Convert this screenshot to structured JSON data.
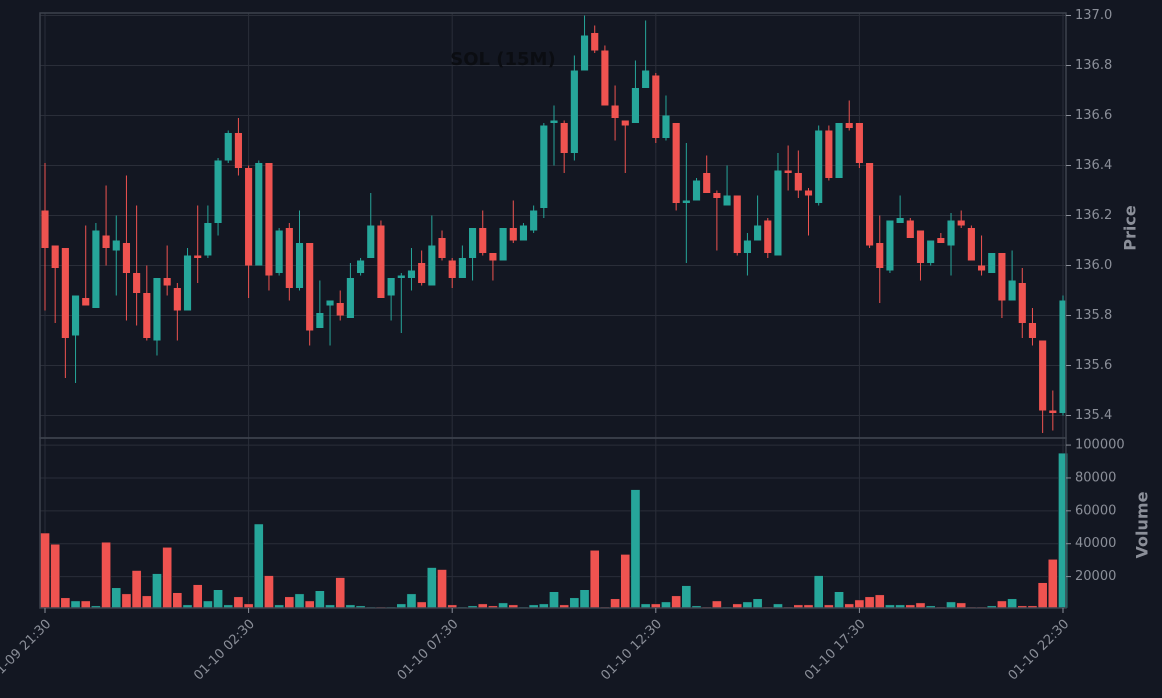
{
  "chart_data": {
    "type": "candlestick",
    "title": "SOL (15M)",
    "y_label": "Price",
    "volume_label": "Volume",
    "up_color": "#26a69a",
    "down_color": "#ef5350",
    "grid": true,
    "x": [
      "01-09 21:30",
      "01-09 21:45",
      "01-09 22:00",
      "01-09 22:15",
      "01-09 22:30",
      "01-09 22:45",
      "01-09 23:00",
      "01-09 23:15",
      "01-09 23:30",
      "01-09 23:45",
      "01-10 00:00",
      "01-10 00:15",
      "01-10 00:30",
      "01-10 00:45",
      "01-10 01:00",
      "01-10 01:15",
      "01-10 01:30",
      "01-10 01:45",
      "01-10 02:00",
      "01-10 02:15",
      "01-10 02:30",
      "01-10 02:45",
      "01-10 03:00",
      "01-10 03:15",
      "01-10 03:30",
      "01-10 03:45",
      "01-10 04:00",
      "01-10 04:15",
      "01-10 04:30",
      "01-10 04:45",
      "01-10 05:00",
      "01-10 05:15",
      "01-10 05:30",
      "01-10 05:45",
      "01-10 06:00",
      "01-10 06:15",
      "01-10 06:30",
      "01-10 06:45",
      "01-10 07:00",
      "01-10 07:15",
      "01-10 07:30",
      "01-10 07:45",
      "01-10 08:00",
      "01-10 08:15",
      "01-10 08:30",
      "01-10 08:45",
      "01-10 09:00",
      "01-10 09:15",
      "01-10 09:30",
      "01-10 09:45",
      "01-10 10:00",
      "01-10 10:15",
      "01-10 10:30",
      "01-10 10:45",
      "01-10 11:00",
      "01-10 11:15",
      "01-10 11:30",
      "01-10 11:45",
      "01-10 12:00",
      "01-10 12:15",
      "01-10 12:30",
      "01-10 12:45",
      "01-10 13:00",
      "01-10 13:15",
      "01-10 13:30",
      "01-10 13:45",
      "01-10 14:00",
      "01-10 14:15",
      "01-10 14:30",
      "01-10 14:45",
      "01-10 15:00",
      "01-10 15:15",
      "01-10 15:30",
      "01-10 15:45",
      "01-10 16:00",
      "01-10 16:15",
      "01-10 16:30",
      "01-10 16:45",
      "01-10 17:00",
      "01-10 17:15",
      "01-10 17:30",
      "01-10 17:45",
      "01-10 18:00",
      "01-10 18:15",
      "01-10 18:30",
      "01-10 18:45",
      "01-10 19:00",
      "01-10 19:15",
      "01-10 19:30",
      "01-10 19:45",
      "01-10 20:00",
      "01-10 20:15",
      "01-10 20:30",
      "01-10 20:45",
      "01-10 21:00",
      "01-10 21:15",
      "01-10 21:30",
      "01-10 21:45",
      "01-10 22:00",
      "01-10 22:15",
      "01-10 22:30"
    ],
    "xticks": [
      "01-09 21:30",
      "01-10 02:30",
      "01-10 07:30",
      "01-10 12:30",
      "01-10 17:30",
      "01-10 22:30"
    ],
    "open": [
      136.22,
      136.08,
      136.07,
      135.72,
      135.87,
      135.83,
      136.12,
      136.06,
      136.09,
      135.97,
      135.89,
      135.7,
      135.95,
      135.91,
      135.82,
      136.04,
      136.04,
      136.17,
      136.42,
      136.53,
      136.39,
      136.0,
      136.41,
      135.97,
      136.15,
      135.91,
      136.09,
      135.75,
      135.84,
      135.85,
      135.79,
      135.97,
      136.03,
      136.16,
      135.88,
      135.95,
      135.95,
      136.01,
      135.92,
      136.11,
      136.02,
      135.95,
      136.03,
      136.15,
      136.05,
      136.02,
      136.15,
      136.1,
      136.14,
      136.23,
      136.57,
      136.57,
      136.45,
      136.78,
      136.93,
      136.86,
      136.64,
      136.58,
      136.57,
      136.71,
      136.76,
      136.51,
      136.57,
      136.25,
      136.26,
      136.37,
      136.29,
      136.24,
      136.28,
      136.05,
      136.1,
      136.18,
      136.04,
      136.38,
      136.37,
      136.3,
      136.25,
      136.54,
      136.35,
      136.57,
      136.57,
      136.41,
      136.09,
      135.98,
      136.17,
      136.18,
      136.14,
      136.01,
      136.11,
      136.08,
      136.18,
      136.15,
      136.0,
      135.97,
      136.05,
      135.86,
      135.93,
      135.77,
      135.7,
      135.42,
      135.41
    ],
    "high": [
      136.41,
      136.08,
      136.07,
      135.88,
      136.16,
      136.17,
      136.32,
      136.2,
      136.36,
      136.24,
      136.0,
      135.95,
      136.08,
      135.93,
      136.07,
      136.24,
      136.24,
      136.43,
      136.54,
      136.59,
      136.4,
      136.42,
      136.41,
      136.15,
      136.17,
      136.22,
      136.09,
      135.94,
      135.86,
      135.9,
      136.01,
      136.03,
      136.29,
      136.18,
      135.95,
      135.97,
      136.07,
      136.06,
      136.2,
      136.14,
      136.03,
      136.08,
      136.15,
      136.22,
      136.05,
      136.15,
      136.26,
      136.17,
      136.24,
      136.57,
      136.64,
      136.58,
      136.84,
      137.0,
      136.96,
      136.88,
      136.72,
      136.58,
      136.82,
      136.98,
      136.77,
      136.68,
      136.57,
      136.49,
      136.35,
      136.44,
      136.3,
      136.4,
      136.28,
      136.13,
      136.28,
      136.19,
      136.45,
      136.48,
      136.46,
      136.31,
      136.56,
      136.56,
      136.57,
      136.66,
      136.57,
      136.41,
      136.2,
      136.18,
      136.28,
      136.19,
      136.14,
      136.1,
      136.13,
      136.21,
      136.22,
      136.16,
      136.12,
      136.05,
      136.05,
      136.06,
      135.99,
      135.83,
      135.7,
      135.5,
      135.88
    ],
    "low": [
      135.82,
      135.77,
      135.55,
      135.53,
      135.84,
      135.83,
      136.0,
      135.88,
      135.78,
      135.76,
      135.7,
      135.64,
      135.88,
      135.7,
      135.82,
      135.93,
      136.03,
      136.12,
      136.41,
      136.36,
      135.87,
      136.0,
      135.9,
      135.96,
      135.86,
      135.9,
      135.68,
      135.75,
      135.68,
      135.78,
      135.79,
      135.96,
      136.03,
      135.87,
      135.78,
      135.73,
      135.9,
      135.92,
      135.92,
      136.02,
      135.91,
      135.95,
      135.94,
      136.04,
      135.94,
      136.02,
      136.09,
      136.1,
      136.13,
      136.19,
      136.4,
      136.37,
      136.42,
      136.78,
      136.85,
      136.64,
      136.5,
      136.37,
      136.57,
      136.71,
      136.49,
      136.5,
      136.22,
      136.01,
      136.26,
      136.29,
      136.06,
      136.24,
      136.04,
      135.96,
      136.1,
      136.03,
      136.04,
      136.3,
      136.27,
      136.12,
      136.24,
      136.34,
      136.35,
      136.54,
      136.39,
      136.07,
      135.85,
      135.97,
      136.17,
      136.11,
      135.94,
      136.0,
      136.09,
      135.96,
      136.15,
      136.02,
      135.96,
      135.97,
      135.79,
      135.86,
      135.71,
      135.68,
      135.33,
      135.34,
      135.4
    ],
    "close": [
      136.07,
      135.99,
      135.71,
      135.88,
      135.84,
      136.14,
      136.07,
      136.1,
      135.97,
      135.89,
      135.71,
      135.95,
      135.92,
      135.82,
      136.04,
      136.03,
      136.17,
      136.42,
      136.53,
      136.39,
      136.0,
      136.41,
      135.96,
      136.14,
      135.91,
      136.09,
      135.74,
      135.81,
      135.86,
      135.8,
      135.95,
      136.02,
      136.16,
      135.87,
      135.95,
      135.96,
      135.98,
      135.93,
      136.08,
      136.03,
      135.95,
      136.03,
      136.15,
      136.05,
      136.02,
      136.15,
      136.1,
      136.16,
      136.22,
      136.56,
      136.58,
      136.45,
      136.78,
      136.92,
      136.86,
      136.64,
      136.59,
      136.56,
      136.71,
      136.78,
      136.51,
      136.6,
      136.25,
      136.26,
      136.34,
      136.29,
      136.27,
      136.28,
      136.05,
      136.1,
      136.16,
      136.05,
      136.38,
      136.37,
      136.3,
      136.28,
      136.54,
      136.35,
      136.57,
      136.55,
      136.41,
      136.08,
      135.99,
      136.18,
      136.19,
      136.11,
      136.01,
      136.1,
      136.09,
      136.18,
      136.16,
      136.02,
      135.98,
      136.05,
      135.86,
      135.94,
      135.77,
      135.71,
      135.42,
      135.41,
      135.86
    ],
    "volume": [
      46500,
      39700,
      7100,
      5200,
      5200,
      2200,
      40900,
      13200,
      9500,
      23700,
      8300,
      21800,
      37800,
      10200,
      2800,
      15100,
      5200,
      12000,
      2800,
      7700,
      3400,
      52000,
      20600,
      2800,
      7700,
      9500,
      5200,
      11400,
      2800,
      19400,
      2800,
      2200,
      1500,
      1500,
      1500,
      3400,
      9500,
      4600,
      25500,
      24300,
      2800,
      1500,
      2200,
      3400,
      2200,
      4000,
      2800,
      1500,
      2800,
      3400,
      10800,
      2800,
      7100,
      12000,
      36000,
      1500,
      6500,
      33500,
      72900,
      3400,
      3400,
      4600,
      8300,
      14500,
      2200,
      1500,
      5200,
      1500,
      3400,
      4600,
      6500,
      1500,
      3400,
      1500,
      2800,
      2800,
      20600,
      2800,
      10800,
      3400,
      5800,
      7700,
      8900,
      2800,
      2800,
      2800,
      4000,
      2200,
      1500,
      4600,
      4000,
      1500,
      1500,
      2200,
      5200,
      6500,
      2200,
      2200,
      16300,
      30500,
      95100
    ],
    "ylim": [
      135.31,
      137.01
    ],
    "yticks": [
      135.4,
      135.6,
      135.8,
      {
        "value": 136,
        "label": "136.0"
      },
      136.2,
      136.4,
      136.6,
      136.8,
      {
        "value": 137,
        "label": "137.0"
      }
    ],
    "volume_ylim": [
      900,
      104300
    ],
    "volume_yticks": [
      20000,
      40000,
      60000,
      80000,
      100000
    ]
  }
}
